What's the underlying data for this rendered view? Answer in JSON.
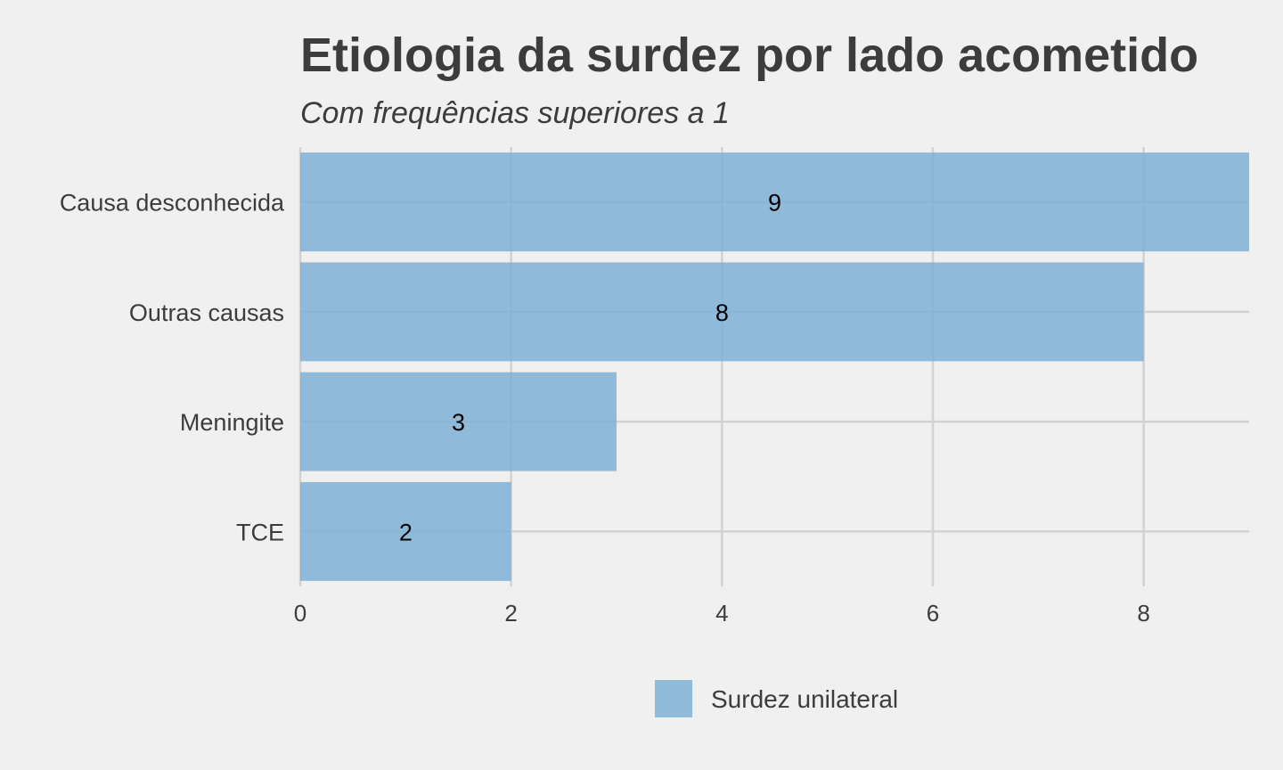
{
  "chart_data": {
    "type": "bar",
    "orientation": "horizontal",
    "title": "Etiologia da surdez por lado acometido",
    "subtitle": "Com frequências superiores a 1",
    "xlabel": "",
    "ylabel": "",
    "categories": [
      "Causa desconhecida",
      "Outras causas",
      "Meningite",
      "TCE"
    ],
    "series": [
      {
        "name": "Surdez unilateral",
        "values": [
          9,
          8,
          3,
          2
        ],
        "color": "#7fb0d6"
      }
    ],
    "xlim": [
      0,
      9
    ],
    "xticks": [
      0,
      2,
      4,
      6,
      8
    ],
    "xtick_labels": [
      "0",
      "2",
      "4",
      "6",
      "8"
    ],
    "data_labels": [
      "9",
      "8",
      "3",
      "2"
    ],
    "grid": true,
    "legend_position": "bottom",
    "background": "#f0f0f0"
  }
}
